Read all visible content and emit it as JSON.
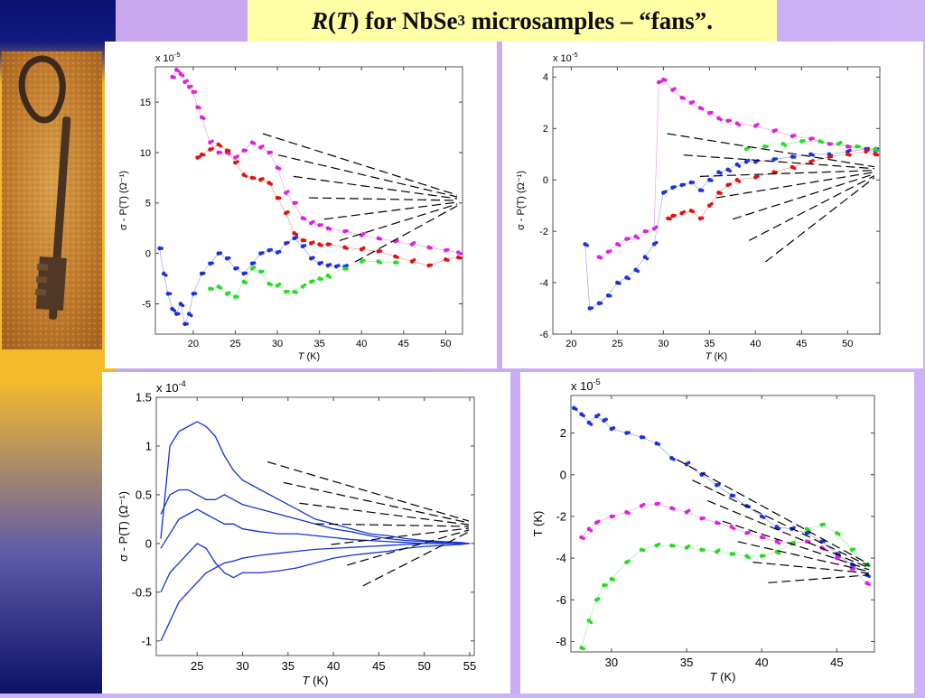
{
  "slide": {
    "title_italic_R": "R",
    "title_open": "(",
    "title_italic_T": "T",
    "title_rest": ") for NbSe",
    "title_sub": "3",
    "title_tail": " microsamples – “fans”."
  },
  "image": {
    "semantic": "antique-key-photo"
  },
  "colors": {
    "blue": "#1d2fe0",
    "red": "#e01010",
    "magenta": "#e020e0",
    "green": "#22dd22",
    "black": "#000000",
    "line_blue": "#1532d6"
  },
  "chart_data": [
    {
      "id": "top-left",
      "type": "scatter",
      "multiplier": "x 10",
      "multiplier_exp": "-5",
      "xlabel_T": "T",
      "xlabel_unit": " (K)",
      "ylabel": "σ - P(T) (Ω⁻¹)",
      "xlim": [
        15.5,
        52
      ],
      "ylim": [
        -8,
        18.5
      ],
      "xticks": [
        20,
        25,
        30,
        35,
        40,
        45,
        50
      ],
      "yticks": [
        -5,
        0,
        5,
        10,
        15
      ],
      "grid": false,
      "series": [
        {
          "color": "magenta",
          "x": [
            17.5,
            18,
            18.5,
            19,
            19.5,
            20,
            20.5,
            21,
            22,
            23,
            24,
            25,
            26,
            27,
            28,
            29,
            30,
            31,
            32,
            33,
            34,
            35,
            36,
            38,
            40,
            42,
            44,
            46,
            48,
            50,
            51.5
          ],
          "y": [
            17.5,
            18.2,
            17.8,
            17,
            16.5,
            16,
            14.5,
            13.5,
            11,
            10,
            10,
            9.5,
            10.2,
            11,
            10.5,
            10,
            8.5,
            6,
            5,
            3.5,
            3,
            2.8,
            2.5,
            2.2,
            1.8,
            1.5,
            1.2,
            0.9,
            0.6,
            0.3,
            0.1
          ]
        },
        {
          "color": "red",
          "x": [
            20.5,
            21,
            22,
            23,
            24,
            25,
            26,
            27,
            28,
            29,
            30,
            31,
            32,
            33,
            34,
            35,
            36,
            38,
            40,
            42,
            44,
            46,
            48,
            50,
            51.5
          ],
          "y": [
            9.5,
            9.8,
            10.3,
            10.8,
            10.2,
            9,
            7.8,
            7.5,
            7.3,
            7,
            5.5,
            4,
            2,
            1.3,
            1,
            0.9,
            0.9,
            0.6,
            0.4,
            0.2,
            -0.3,
            -0.8,
            -1.2,
            -0.6,
            -0.4
          ]
        },
        {
          "color": "blue",
          "x": [
            16,
            16.5,
            17,
            17.5,
            18,
            18.5,
            19,
            19.5,
            20,
            21,
            22,
            23,
            24,
            25,
            26,
            27,
            28,
            29,
            30,
            31,
            32,
            33,
            34,
            35,
            36,
            37,
            38
          ],
          "y": [
            0.5,
            -2,
            -4,
            -5.5,
            -6,
            -5,
            -7,
            -6,
            -4,
            -2,
            -1,
            0,
            -0.5,
            -1.5,
            -2,
            -1,
            0,
            0.3,
            0.1,
            1,
            1.5,
            0.7,
            -0.5,
            -1,
            -1.2,
            -1.3,
            -1.3
          ]
        },
        {
          "color": "green",
          "x": [
            22,
            23,
            24,
            25,
            26,
            27,
            28,
            29,
            30,
            31,
            32,
            33,
            34,
            35,
            36,
            38,
            40,
            42,
            44
          ],
          "y": [
            -3.5,
            -3.3,
            -4,
            -4.3,
            -2.8,
            -1.5,
            -1.8,
            -3,
            -3.2,
            -3.8,
            -3.8,
            -3.3,
            -2.8,
            -2.5,
            -2.2,
            -1.5,
            -0.8,
            -0.8,
            -0.9
          ]
        }
      ]
    },
    {
      "id": "top-right",
      "type": "scatter",
      "multiplier": "x 10",
      "multiplier_exp": "-5",
      "xlabel_T": "T",
      "xlabel_unit": " (K)",
      "ylabel": "σ - P(T) (Ω⁻¹)",
      "xlim": [
        18,
        53.5
      ],
      "ylim": [
        -6,
        4.4
      ],
      "xticks": [
        20,
        25,
        30,
        35,
        40,
        45,
        50
      ],
      "yticks": [
        -6,
        -4,
        -2,
        0,
        2,
        4
      ],
      "grid": false,
      "series": [
        {
          "color": "magenta",
          "x": [
            23,
            24,
            25,
            26,
            27,
            28,
            29,
            29.5,
            30,
            31,
            32,
            33,
            34,
            35,
            36,
            37,
            38,
            40,
            42,
            44,
            46,
            48,
            50,
            52,
            53
          ],
          "y": [
            -3,
            -2.8,
            -2.5,
            -2.3,
            -2.2,
            -2,
            -1.9,
            3.8,
            3.9,
            3.5,
            3.2,
            3,
            2.8,
            2.6,
            2.4,
            2.3,
            2.2,
            2.1,
            1.9,
            1.7,
            1.6,
            1.4,
            1.3,
            1.2,
            1.1
          ]
        },
        {
          "color": "blue",
          "x": [
            21.5,
            22,
            23,
            24,
            25,
            26,
            27,
            28,
            29,
            30,
            31,
            32,
            33,
            34,
            35,
            36,
            37,
            38,
            39,
            40,
            42,
            44,
            46,
            48,
            50,
            52,
            53
          ],
          "y": [
            -2.5,
            -5,
            -4.8,
            -4.5,
            -4,
            -3.8,
            -3.5,
            -3,
            -2.5,
            -0.5,
            -0.3,
            -0.2,
            -0.1,
            -0.4,
            0,
            0.3,
            0.4,
            0.6,
            0.7,
            0.7,
            0.8,
            0.9,
            1,
            1,
            1.1,
            1.2,
            1.2
          ]
        },
        {
          "color": "red",
          "x": [
            30.5,
            31,
            32,
            33,
            34,
            35,
            36,
            37,
            38,
            40,
            42,
            44,
            46,
            48,
            50,
            52,
            53
          ],
          "y": [
            -1.5,
            -1.4,
            -1.3,
            -1.2,
            -1.5,
            -1.0,
            -0.5,
            -0.2,
            0,
            0.1,
            0.3,
            0.5,
            0.7,
            0.9,
            1.0,
            1.1,
            1.0
          ]
        },
        {
          "color": "green",
          "x": [
            39,
            41,
            43,
            45,
            47,
            49,
            51,
            53
          ],
          "y": [
            1.2,
            1.3,
            1.4,
            1.5,
            1.5,
            1.4,
            1.3,
            1.2
          ]
        }
      ]
    },
    {
      "id": "bottom-left",
      "type": "line",
      "multiplier": "x 10",
      "multiplier_exp": "-4",
      "xlabel_T": "T",
      "xlabel_unit": " (K)",
      "ylabel": "σ - P(T) (Ω⁻¹)",
      "xlim": [
        20.5,
        55.5
      ],
      "ylim": [
        -1.15,
        1.5
      ],
      "xticks": [
        25,
        30,
        35,
        40,
        45,
        50,
        55
      ],
      "yticks": [
        -1,
        -0.5,
        0,
        0.5,
        1,
        1.5
      ],
      "grid": false,
      "series": [
        {
          "color": "line_blue",
          "x": [
            21,
            22,
            23,
            24,
            25,
            26,
            27,
            28,
            29,
            30,
            32,
            34,
            36,
            38,
            40,
            42,
            44,
            46,
            48,
            50,
            52,
            54,
            55
          ],
          "y": [
            0.05,
            1.0,
            1.15,
            1.2,
            1.25,
            1.2,
            1.1,
            0.9,
            0.75,
            0.65,
            0.55,
            0.45,
            0.35,
            0.25,
            0.2,
            0.15,
            0.1,
            0.08,
            0.05,
            0.03,
            0.02,
            0.01,
            0.0
          ]
        },
        {
          "color": "line_blue",
          "x": [
            21,
            22,
            23,
            24,
            25,
            26,
            27,
            28,
            29,
            30,
            32,
            34,
            36,
            38,
            40,
            42,
            44,
            46,
            48,
            50,
            52,
            54,
            55
          ],
          "y": [
            0.3,
            0.5,
            0.55,
            0.55,
            0.5,
            0.45,
            0.45,
            0.5,
            0.45,
            0.4,
            0.35,
            0.3,
            0.25,
            0.2,
            0.15,
            0.12,
            0.08,
            0.05,
            0.03,
            0.02,
            0.01,
            0,
            0
          ]
        },
        {
          "color": "line_blue",
          "x": [
            21,
            22,
            23,
            24,
            25,
            26,
            27,
            28,
            29,
            30,
            32,
            34,
            36,
            38,
            40,
            42,
            44,
            46,
            48,
            50,
            52,
            54,
            55
          ],
          "y": [
            -0.05,
            0.1,
            0.25,
            0.3,
            0.35,
            0.3,
            0.25,
            0.2,
            0.2,
            0.15,
            0.12,
            0.1,
            0.1,
            0.08,
            0.06,
            0.04,
            0.03,
            0.02,
            0.01,
            0,
            0,
            0,
            0
          ]
        },
        {
          "color": "line_blue",
          "x": [
            21,
            22,
            23,
            24,
            25,
            26,
            27,
            28,
            29,
            30,
            32,
            34,
            36,
            38,
            40,
            42,
            44,
            46,
            48,
            50,
            52,
            54,
            55
          ],
          "y": [
            -0.5,
            -0.3,
            -0.2,
            -0.1,
            0,
            -0.05,
            -0.2,
            -0.3,
            -0.35,
            -0.3,
            -0.3,
            -0.28,
            -0.25,
            -0.2,
            -0.15,
            -0.12,
            -0.1,
            -0.08,
            -0.05,
            -0.03,
            -0.02,
            -0.01,
            0
          ]
        },
        {
          "color": "line_blue",
          "x": [
            21,
            22,
            23,
            24,
            25,
            26,
            27,
            28,
            29,
            30,
            32,
            34,
            36,
            38,
            40,
            42,
            44,
            46,
            48,
            50,
            52,
            54,
            55
          ],
          "y": [
            -1.0,
            -0.8,
            -0.6,
            -0.5,
            -0.4,
            -0.3,
            -0.25,
            -0.2,
            -0.18,
            -0.15,
            -0.12,
            -0.1,
            -0.08,
            -0.06,
            -0.05,
            -0.04,
            -0.03,
            -0.02,
            -0.01,
            0,
            0,
            0,
            0
          ]
        }
      ]
    },
    {
      "id": "bottom-right",
      "type": "scatter",
      "multiplier": "x 10",
      "multiplier_exp": "-5",
      "xlabel_T": "T",
      "xlabel_unit": " (K)",
      "ylabel": "T (K)",
      "xlim": [
        27.3,
        47.5
      ],
      "ylim": [
        -8.5,
        3.8
      ],
      "xticks": [
        30,
        35,
        40,
        45
      ],
      "yticks": [
        -8,
        -6,
        -4,
        -2,
        0,
        2
      ],
      "grid": false,
      "series": [
        {
          "color": "blue",
          "x": [
            27.5,
            28,
            28.5,
            29,
            29.5,
            30,
            31,
            32,
            33,
            34,
            35,
            36,
            37,
            38,
            39,
            40,
            41,
            42,
            43,
            44,
            45,
            46,
            47
          ],
          "y": [
            3.2,
            2.9,
            2.5,
            2.8,
            2.6,
            2.2,
            2,
            1.8,
            1.5,
            0.8,
            0.5,
            0,
            -0.5,
            -1,
            -1.5,
            -2,
            -2.5,
            -2.6,
            -2.8,
            -3.2,
            -3.8,
            -4.3,
            -4.8
          ]
        },
        {
          "color": "magenta",
          "x": [
            28,
            28.5,
            29,
            30,
            31,
            32,
            33,
            34,
            35,
            36,
            37,
            38,
            39,
            40,
            41,
            42,
            43,
            44,
            45,
            46,
            47
          ],
          "y": [
            -3,
            -2.6,
            -2.3,
            -2.0,
            -1.8,
            -1.5,
            -1.4,
            -1.6,
            -1.8,
            -2.1,
            -2.3,
            -2.5,
            -2.8,
            -3.0,
            -3.2,
            -3.3,
            -3.2,
            -3.5,
            -4.0,
            -4.5,
            -5.2
          ]
        },
        {
          "color": "green",
          "x": [
            28,
            28.5,
            29,
            29.5,
            30,
            31,
            32,
            33,
            34,
            35,
            36,
            37,
            38,
            39,
            40,
            41,
            42,
            43,
            44,
            45,
            46,
            47
          ],
          "y": [
            -8.3,
            -7,
            -6,
            -5.3,
            -5,
            -4.2,
            -3.6,
            -3.4,
            -3.4,
            -3.5,
            -3.6,
            -3.7,
            -3.8,
            -3.9,
            -3.9,
            -3.7,
            -3.3,
            -2.6,
            -2.4,
            -2.8,
            -3.6,
            -4.3
          ]
        }
      ]
    }
  ]
}
